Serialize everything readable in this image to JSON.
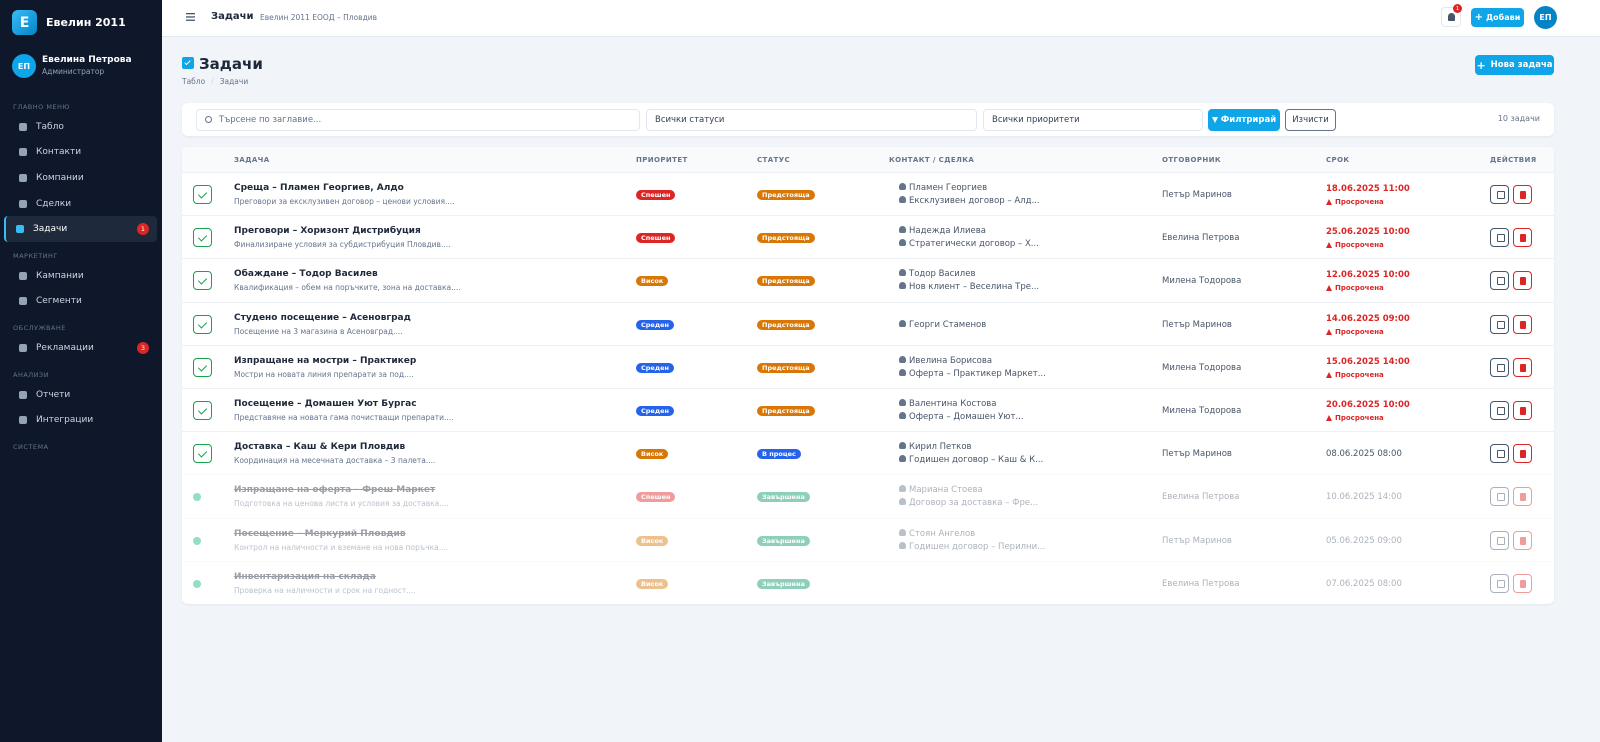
{
  "sidebar": {
    "logo": "Е",
    "brand": "Евелин 2011",
    "user": {
      "initials": "ЕП",
      "name": "Евелина Петрова",
      "role": "Администратор"
    },
    "sections": [
      {
        "title": "ГЛАВНО МЕНЮ",
        "items": [
          {
            "label": "Табло",
            "active": false,
            "badge": null
          },
          {
            "label": "Контакти",
            "active": false,
            "badge": null
          },
          {
            "label": "Компании",
            "active": false,
            "badge": null
          },
          {
            "label": "Сделки",
            "active": false,
            "badge": null
          },
          {
            "label": "Задачи",
            "active": true,
            "badge": "1"
          }
        ]
      },
      {
        "title": "МАРКЕТИНГ",
        "items": [
          {
            "label": "Кампании",
            "active": false,
            "badge": null
          },
          {
            "label": "Сегменти",
            "active": false,
            "badge": null
          }
        ]
      },
      {
        "title": "ОБСЛУЖВАНЕ",
        "items": [
          {
            "label": "Рекламации",
            "active": false,
            "badge": "3"
          }
        ]
      },
      {
        "title": "АНАЛИЗИ",
        "items": [
          {
            "label": "Отчети",
            "active": false,
            "badge": null
          },
          {
            "label": "Интеграции",
            "active": false,
            "badge": null
          }
        ]
      },
      {
        "title": "СИСТЕМА",
        "items": []
      }
    ]
  },
  "topbar": {
    "title": "Задачи",
    "subtitle": "Евелин 2011 ЕООД – Пловдив",
    "notifications": "1",
    "add_button": "Добави",
    "avatar": "ЕП"
  },
  "header": {
    "title": "Задачи",
    "breadcrumb": [
      "Табло",
      "Задачи"
    ],
    "new_button": "Нова задача"
  },
  "filters": {
    "search": "Търсене по заглавие...",
    "status": "Всички статуси",
    "priority": "Всички приоритети",
    "filter_button": "Филтрирай",
    "clear_button": "Изчисти",
    "count": "10 задачи"
  },
  "table": {
    "columns": [
      "ЗАДАЧА",
      "ПРИОРИТЕТ",
      "СТАТУС",
      "КОНТАКТ / СДЕЛКА",
      "ОТГОВОРНИК",
      "СРОК",
      "ДЕЙСТВИЯ"
    ],
    "rows": [
      {
        "title": "Среща – Пламен Георгиев, Алдо",
        "description": "Преговори за ексклузивен договор – ценови условия....",
        "priority": {
          "label": "Спешен",
          "color": "#dc2626"
        },
        "status": {
          "label": "Предстояща",
          "color": "#d97706"
        },
        "contact": "Пламен Георгиев",
        "deal": "Ексклузивен договор – Алд...",
        "owner": "Петър Маринов",
        "due": "18.06.2025 11:00",
        "overdue": "Просрочена",
        "done": false
      },
      {
        "title": "Преговори – Хоризонт Дистрибуция",
        "description": "Финализиране условия за субдистрибуция Пловдив....",
        "priority": {
          "label": "Спешен",
          "color": "#dc2626"
        },
        "status": {
          "label": "Предстояща",
          "color": "#d97706"
        },
        "contact": "Надежда Илиева",
        "deal": "Стратегически договор – Х...",
        "owner": "Евелина Петрова",
        "due": "25.06.2025 10:00",
        "overdue": "Просрочена",
        "done": false
      },
      {
        "title": "Обаждане – Тодор Василев",
        "description": "Квалификация – обем на поръчките, зона на доставка....",
        "priority": {
          "label": "Висок",
          "color": "#d97706"
        },
        "status": {
          "label": "Предстояща",
          "color": "#d97706"
        },
        "contact": "Тодор Василев",
        "deal": "Нов клиент – Веселина Тре...",
        "owner": "Милена Тодорова",
        "due": "12.06.2025 10:00",
        "overdue": "Просрочена",
        "done": false
      },
      {
        "title": "Студено посещение – Асеновград",
        "description": "Посещение на 3 магазина в Асеновград....",
        "priority": {
          "label": "Среден",
          "color": "#2563eb"
        },
        "status": {
          "label": "Предстояща",
          "color": "#d97706"
        },
        "contact": "Георги Стаменов",
        "deal": null,
        "owner": "Петър Маринов",
        "due": "14.06.2025 09:00",
        "overdue": "Просрочена",
        "done": false
      },
      {
        "title": "Изпращане на мостри – Практикер",
        "description": "Мостри на новата линия препарати за под....",
        "priority": {
          "label": "Среден",
          "color": "#2563eb"
        },
        "status": {
          "label": "Предстояща",
          "color": "#d97706"
        },
        "contact": "Ивелина Борисова",
        "deal": "Оферта – Практикер Маркет...",
        "owner": "Милена Тодорова",
        "due": "15.06.2025 14:00",
        "overdue": "Просрочена",
        "done": false
      },
      {
        "title": "Посещение – Домашен Уют Бургас",
        "description": "Представяне на новата гама почистващи препарати....",
        "priority": {
          "label": "Среден",
          "color": "#2563eb"
        },
        "status": {
          "label": "Предстояща",
          "color": "#d97706"
        },
        "contact": "Валентина Костова",
        "deal": "Оферта – Домашен Уют...",
        "owner": "Милена Тодорова",
        "due": "20.06.2025 10:00",
        "overdue": "Просрочена",
        "done": false
      },
      {
        "title": "Доставка – Каш & Кери Пловдив",
        "description": "Координация на месечната доставка – 3 палета....",
        "priority": {
          "label": "Висок",
          "color": "#d97706"
        },
        "status": {
          "label": "В процес",
          "color": "#2563eb"
        },
        "contact": "Кирил Петков",
        "deal": "Годишен договор – Каш & К...",
        "owner": "Петър Маринов",
        "due": "08.06.2025 08:00",
        "overdue": null,
        "done": false
      },
      {
        "title": "Изпращане на оферта – Фреш Маркет",
        "description": "Подготовка на ценова листа и условия за доставка....",
        "priority": {
          "label": "Спешен",
          "color": "#dc2626"
        },
        "status": {
          "label": "Завършена",
          "color": "#059669"
        },
        "contact": "Мариана Стоева",
        "deal": "Договор за доставка – Фре...",
        "owner": "Евелина Петрова",
        "due": "10.06.2025 14:00",
        "overdue": null,
        "done": true
      },
      {
        "title": "Посещение – Меркурий Пловдив",
        "description": "Контрол на наличности и вземане на нова поръчка....",
        "priority": {
          "label": "Висок",
          "color": "#d97706"
        },
        "status": {
          "label": "Завършена",
          "color": "#059669"
        },
        "contact": "Стоян Ангелов",
        "deal": "Годишен договор – Перилни...",
        "owner": "Петър Маринов",
        "due": "05.06.2025 09:00",
        "overdue": null,
        "done": true
      },
      {
        "title": "Инвентаризация на склада",
        "description": "Проверка на наличности и срок на годност....",
        "priority": {
          "label": "Висок",
          "color": "#d97706"
        },
        "status": {
          "label": "Завършена",
          "color": "#059669"
        },
        "contact": null,
        "deal": null,
        "owner": "Евелина Петрова",
        "due": "07.06.2025 08:00",
        "overdue": null,
        "done": true
      }
    ]
  }
}
